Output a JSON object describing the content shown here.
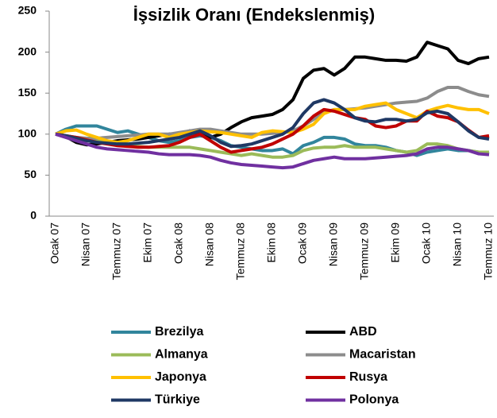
{
  "chart_data": {
    "type": "line",
    "title": "İşsizlik Oranı (Endekslenmiş)",
    "categories": [
      "Ocak 07",
      null,
      null,
      "Nisan 07",
      null,
      null,
      "Temmuz 07",
      null,
      null,
      "Ekim 07",
      null,
      null,
      "Ocak 08",
      null,
      null,
      "Nisan 08",
      null,
      null,
      "Temmuz 08",
      null,
      null,
      "Ekim 08",
      null,
      null,
      "Ocak 09",
      null,
      null,
      "Nisan 09",
      null,
      null,
      "Temmuz 09",
      null,
      null,
      "Ekim 09",
      null,
      null,
      "Ocak 10",
      null,
      null,
      "Nisan 10",
      null,
      null,
      "Temmuz 10"
    ],
    "ylim": [
      0,
      250
    ],
    "yticks": [
      0,
      50,
      100,
      150,
      200,
      250
    ],
    "grid": false,
    "series": [
      {
        "name": "Brezilya",
        "color": "#31859c",
        "values": [
          100,
          106,
          110,
          110,
          110,
          106,
          102,
          104,
          100,
          96,
          92,
          90,
          92,
          96,
          98,
          96,
          92,
          86,
          84,
          82,
          80,
          80,
          82,
          76,
          86,
          90,
          96,
          96,
          94,
          88,
          86,
          86,
          84,
          80,
          78,
          74,
          78,
          80,
          82,
          80,
          80,
          78,
          76
        ]
      },
      {
        "name": "ABD",
        "color": "#000000",
        "values": [
          100,
          97,
          90,
          87,
          88,
          90,
          92,
          93,
          94,
          96,
          98,
          100,
          100,
          104,
          100,
          96,
          100,
          108,
          115,
          120,
          122,
          124,
          130,
          142,
          168,
          178,
          180,
          172,
          180,
          194,
          194,
          192,
          190,
          190,
          189,
          194,
          212,
          208,
          204,
          190,
          186,
          192,
          194
        ]
      },
      {
        "name": "Almanya",
        "color": "#9bbb59",
        "values": [
          100,
          98,
          96,
          94,
          92,
          90,
          88,
          86,
          85,
          84,
          84,
          84,
          84,
          84,
          82,
          80,
          78,
          76,
          74,
          76,
          74,
          72,
          72,
          74,
          80,
          83,
          84,
          84,
          86,
          84,
          84,
          84,
          82,
          80,
          78,
          80,
          88,
          88,
          86,
          82,
          80,
          78,
          78
        ]
      },
      {
        "name": "Macaristan",
        "color": "#8c8c8c",
        "values": [
          100,
          98,
          96,
          95,
          95,
          96,
          97,
          98,
          99,
          100,
          100,
          100,
          102,
          104,
          106,
          106,
          104,
          102,
          100,
          100,
          100,
          101,
          102,
          104,
          110,
          118,
          126,
          130,
          130,
          131,
          132,
          134,
          136,
          138,
          139,
          140,
          144,
          152,
          157,
          157,
          152,
          148,
          146
        ]
      },
      {
        "name": "Japonya",
        "color": "#ffc000",
        "values": [
          100,
          104,
          105,
          100,
          96,
          92,
          90,
          92,
          96,
          100,
          100,
          96,
          100,
          102,
          104,
          103,
          102,
          100,
          98,
          96,
          102,
          104,
          103,
          102,
          106,
          112,
          125,
          130,
          130,
          130,
          134,
          136,
          138,
          130,
          125,
          120,
          128,
          132,
          135,
          132,
          130,
          130,
          125
        ]
      },
      {
        "name": "Rusya",
        "color": "#c00000",
        "values": [
          100,
          98,
          96,
          93,
          90,
          88,
          86,
          85,
          84,
          84,
          85,
          86,
          90,
          96,
          100,
          92,
          84,
          78,
          80,
          82,
          84,
          88,
          94,
          100,
          110,
          122,
          130,
          128,
          124,
          120,
          118,
          110,
          108,
          110,
          116,
          116,
          128,
          122,
          120,
          115,
          105,
          96,
          98
        ]
      },
      {
        "name": "Türkiye",
        "color": "#1f3864",
        "values": [
          100,
          98,
          95,
          92,
          90,
          89,
          88,
          88,
          89,
          90,
          92,
          94,
          96,
          100,
          104,
          98,
          90,
          85,
          86,
          88,
          92,
          96,
          100,
          108,
          125,
          138,
          142,
          138,
          130,
          120,
          116,
          115,
          118,
          118,
          116,
          118,
          126,
          128,
          125,
          115,
          104,
          96,
          94
        ]
      },
      {
        "name": "Polonya",
        "color": "#7030a0",
        "values": [
          100,
          96,
          92,
          88,
          84,
          82,
          81,
          80,
          79,
          78,
          76,
          75,
          75,
          75,
          74,
          72,
          68,
          65,
          63,
          62,
          61,
          60,
          59,
          60,
          64,
          68,
          70,
          72,
          70,
          70,
          70,
          71,
          72,
          73,
          74,
          76,
          82,
          84,
          84,
          82,
          80,
          76,
          75
        ]
      }
    ]
  }
}
